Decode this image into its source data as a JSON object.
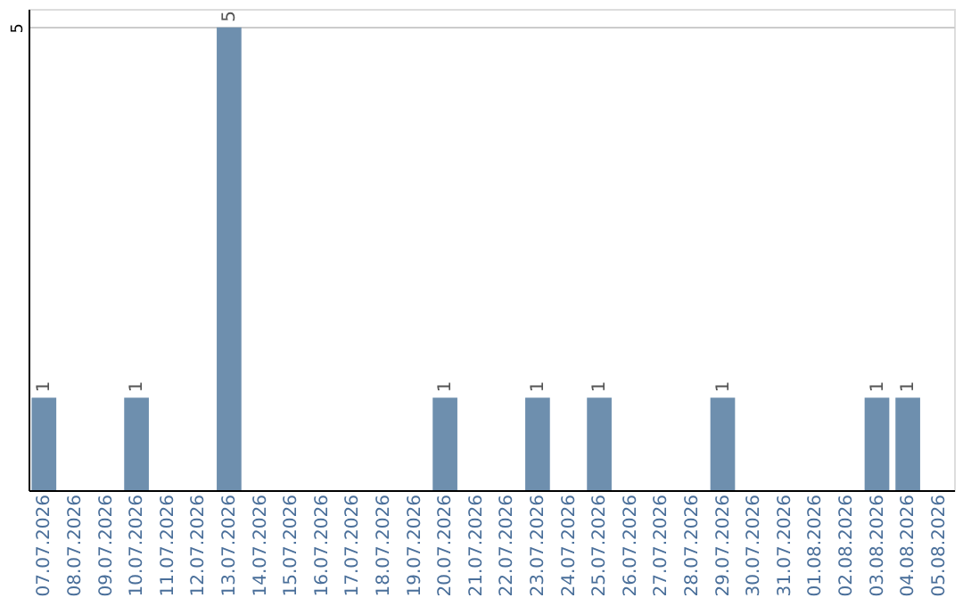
{
  "chart_data": {
    "type": "bar",
    "categories": [
      "07.07.2026",
      "08.07.2026",
      "09.07.2026",
      "10.07.2026",
      "11.07.2026",
      "12.07.2026",
      "13.07.2026",
      "14.07.2026",
      "15.07.2026",
      "16.07.2026",
      "17.07.2026",
      "18.07.2026",
      "19.07.2026",
      "20.07.2026",
      "21.07.2026",
      "22.07.2026",
      "23.07.2026",
      "24.07.2026",
      "25.07.2026",
      "26.07.2026",
      "27.07.2026",
      "28.07.2026",
      "29.07.2026",
      "30.07.2026",
      "31.07.2026",
      "01.08.2026",
      "02.08.2026",
      "03.08.2026",
      "04.08.2026",
      "05.08.2026"
    ],
    "values": [
      1,
      0,
      0,
      1,
      0,
      0,
      5,
      0,
      0,
      0,
      0,
      0,
      0,
      1,
      0,
      0,
      1,
      0,
      1,
      0,
      0,
      0,
      1,
      0,
      0,
      0,
      0,
      1,
      1,
      0
    ],
    "value_labels": [
      "1",
      null,
      null,
      "1",
      null,
      null,
      "5",
      null,
      null,
      null,
      null,
      null,
      null,
      "1",
      null,
      null,
      "1",
      null,
      "1",
      null,
      null,
      null,
      "1",
      null,
      null,
      null,
      null,
      "1",
      "1",
      null
    ],
    "color": "#6e8fae",
    "ylim": [
      0,
      5.2
    ],
    "yticks": [
      5
    ],
    "grid": "y"
  }
}
